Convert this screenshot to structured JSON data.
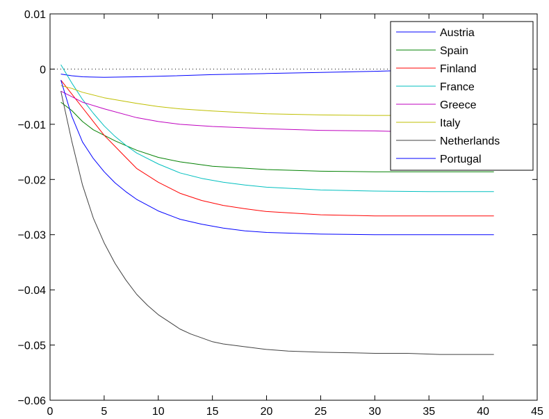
{
  "chart_data": {
    "type": "line",
    "title": "",
    "xlabel": "",
    "ylabel": "",
    "xlim": [
      0,
      45
    ],
    "ylim": [
      -0.06,
      0.01
    ],
    "xticks": [
      0,
      5,
      10,
      15,
      20,
      25,
      30,
      35,
      40,
      45
    ],
    "yticks": [
      -0.06,
      -0.05,
      -0.04,
      -0.03,
      -0.02,
      -0.01,
      0,
      0.01
    ],
    "xtick_labels": [
      "0",
      "5",
      "10",
      "15",
      "20",
      "25",
      "30",
      "35",
      "40",
      "45"
    ],
    "ytick_labels": [
      "−0.06",
      "−0.05",
      "−0.04",
      "−0.03",
      "−0.02",
      "−0.01",
      "0",
      "0.01"
    ],
    "zero_line": "dotted",
    "grid": false,
    "legend_position": "top-right",
    "series": [
      {
        "name": "Austria",
        "color": "#0000ff",
        "x": [
          1,
          2,
          3,
          5,
          8,
          10,
          15,
          20,
          25,
          30,
          32
        ],
        "y": [
          -0.0009,
          -0.0012,
          -0.0014,
          -0.0015,
          -0.0014,
          -0.0013,
          -0.001,
          -0.0008,
          -0.0006,
          -0.0004,
          -0.0003
        ]
      },
      {
        "name": "Spain",
        "color": "#008000",
        "x": [
          1,
          2,
          3,
          4,
          5,
          6,
          8,
          10,
          12,
          15,
          20,
          25,
          30,
          35,
          41
        ],
        "y": [
          -0.006,
          -0.0075,
          -0.0095,
          -0.011,
          -0.012,
          -0.013,
          -0.0147,
          -0.016,
          -0.0168,
          -0.0176,
          -0.0182,
          -0.0185,
          -0.0186,
          -0.0186,
          -0.0186
        ]
      },
      {
        "name": "Finland",
        "color": "#ff0000",
        "x": [
          1,
          2,
          3,
          4,
          5,
          6,
          7,
          8,
          10,
          12,
          14,
          16,
          18,
          20,
          25,
          30,
          35,
          41
        ],
        "y": [
          -0.002,
          -0.0045,
          -0.007,
          -0.0095,
          -0.012,
          -0.014,
          -0.016,
          -0.018,
          -0.0205,
          -0.0225,
          -0.0238,
          -0.0247,
          -0.0253,
          -0.0258,
          -0.0264,
          -0.0266,
          -0.0266,
          -0.0266
        ]
      },
      {
        "name": "France",
        "color": "#00bfbf",
        "x": [
          1,
          2,
          3,
          4,
          5,
          6,
          7,
          8,
          10,
          12,
          14,
          16,
          18,
          20,
          25,
          30,
          35,
          41
        ],
        "y": [
          0.0008,
          -0.0025,
          -0.0055,
          -0.008,
          -0.0103,
          -0.0122,
          -0.0138,
          -0.0152,
          -0.0172,
          -0.0188,
          -0.0198,
          -0.0205,
          -0.021,
          -0.0214,
          -0.0219,
          -0.0221,
          -0.0222,
          -0.0222
        ]
      },
      {
        "name": "Greece",
        "color": "#bf00bf",
        "x": [
          1,
          2,
          3,
          5,
          8,
          10,
          12,
          15,
          20,
          25,
          30,
          32
        ],
        "y": [
          -0.004,
          -0.005,
          -0.006,
          -0.0072,
          -0.0088,
          -0.0095,
          -0.01,
          -0.0104,
          -0.0108,
          -0.0111,
          -0.0112,
          -0.0113
        ]
      },
      {
        "name": "Italy",
        "color": "#bfbf00",
        "x": [
          1,
          2,
          3,
          5,
          8,
          10,
          12,
          15,
          20,
          25,
          30,
          32
        ],
        "y": [
          -0.003,
          -0.0035,
          -0.0042,
          -0.0052,
          -0.0062,
          -0.0068,
          -0.0072,
          -0.0076,
          -0.0081,
          -0.0083,
          -0.0084,
          -0.0084
        ]
      },
      {
        "name": "Netherlands",
        "color": "#404040",
        "x": [
          1,
          2,
          3,
          4,
          5,
          6,
          7,
          8,
          9,
          10,
          11,
          12,
          13,
          14,
          15,
          16,
          18,
          20,
          22,
          25,
          28,
          30,
          33,
          36,
          38,
          41
        ],
        "y": [
          -0.004,
          -0.013,
          -0.021,
          -0.027,
          -0.0315,
          -0.0352,
          -0.0382,
          -0.0408,
          -0.0428,
          -0.0445,
          -0.0458,
          -0.0471,
          -0.048,
          -0.0487,
          -0.0494,
          -0.0498,
          -0.0503,
          -0.0508,
          -0.0511,
          -0.0513,
          -0.0514,
          -0.0515,
          -0.0515,
          -0.0517,
          -0.0517,
          -0.0517
        ]
      },
      {
        "name": "Portugal",
        "color": "#0000ff",
        "x": [
          1,
          2,
          3,
          4,
          5,
          6,
          7,
          8,
          10,
          12,
          14,
          16,
          18,
          20,
          25,
          30,
          35,
          41
        ],
        "y": [
          -0.002,
          -0.0085,
          -0.0132,
          -0.0162,
          -0.0186,
          -0.0206,
          -0.0222,
          -0.0236,
          -0.0257,
          -0.0272,
          -0.0281,
          -0.0288,
          -0.0293,
          -0.0296,
          -0.0299,
          -0.03,
          -0.03,
          -0.03
        ]
      }
    ]
  }
}
